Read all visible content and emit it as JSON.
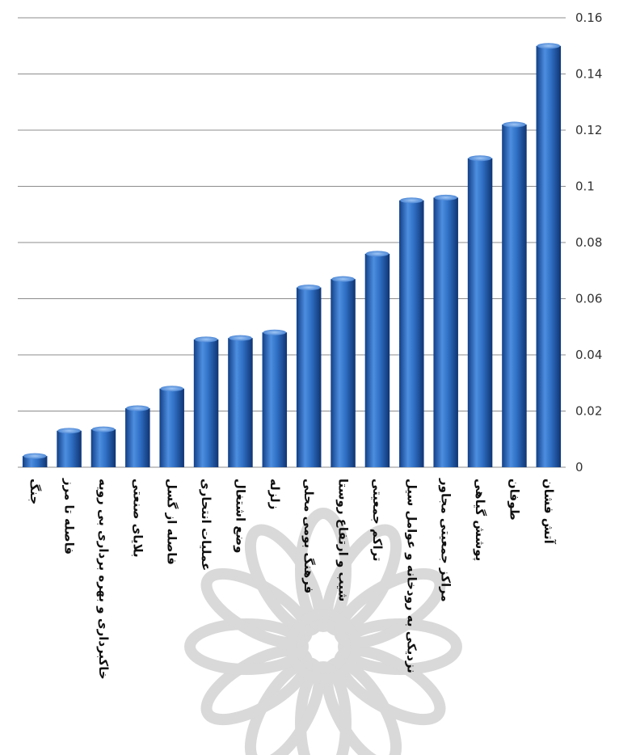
{
  "chart_data": {
    "type": "bar",
    "title": "",
    "xlabel": "",
    "ylabel": "",
    "ylim": [
      0,
      0.16
    ],
    "y_ticks": [
      "0",
      "0.02",
      "0.04",
      "0.06",
      "0.08",
      "0.1",
      "0.12",
      "0.14",
      "0.16"
    ],
    "y_axis_side": "right",
    "grid": true,
    "legend": "none",
    "bar_color": "#2f6fc4",
    "categories": [
      "جنگ",
      "فاصله تا مرز",
      "خاکبرداری و بهره برداری بی رویه",
      "بلایای صنعتی",
      "فاصله از گسل",
      "عملیات انتحاری",
      "وضع اشتغال",
      "زلزله",
      "فرهنگ بومی محلی",
      "شیب و ارتفاع روستا",
      "تراکم جمعیتی",
      "نزدیکی به رودخانه و عوامل سیل",
      "مراکز جمعیتی مجاور",
      "پوشش گیاهی",
      "طوفان",
      "آتش فشان"
    ],
    "values": [
      0.004,
      0.013,
      0.0135,
      0.021,
      0.028,
      0.0455,
      0.046,
      0.048,
      0.064,
      0.067,
      0.076,
      0.095,
      0.096,
      0.11,
      0.122,
      0.15
    ]
  }
}
